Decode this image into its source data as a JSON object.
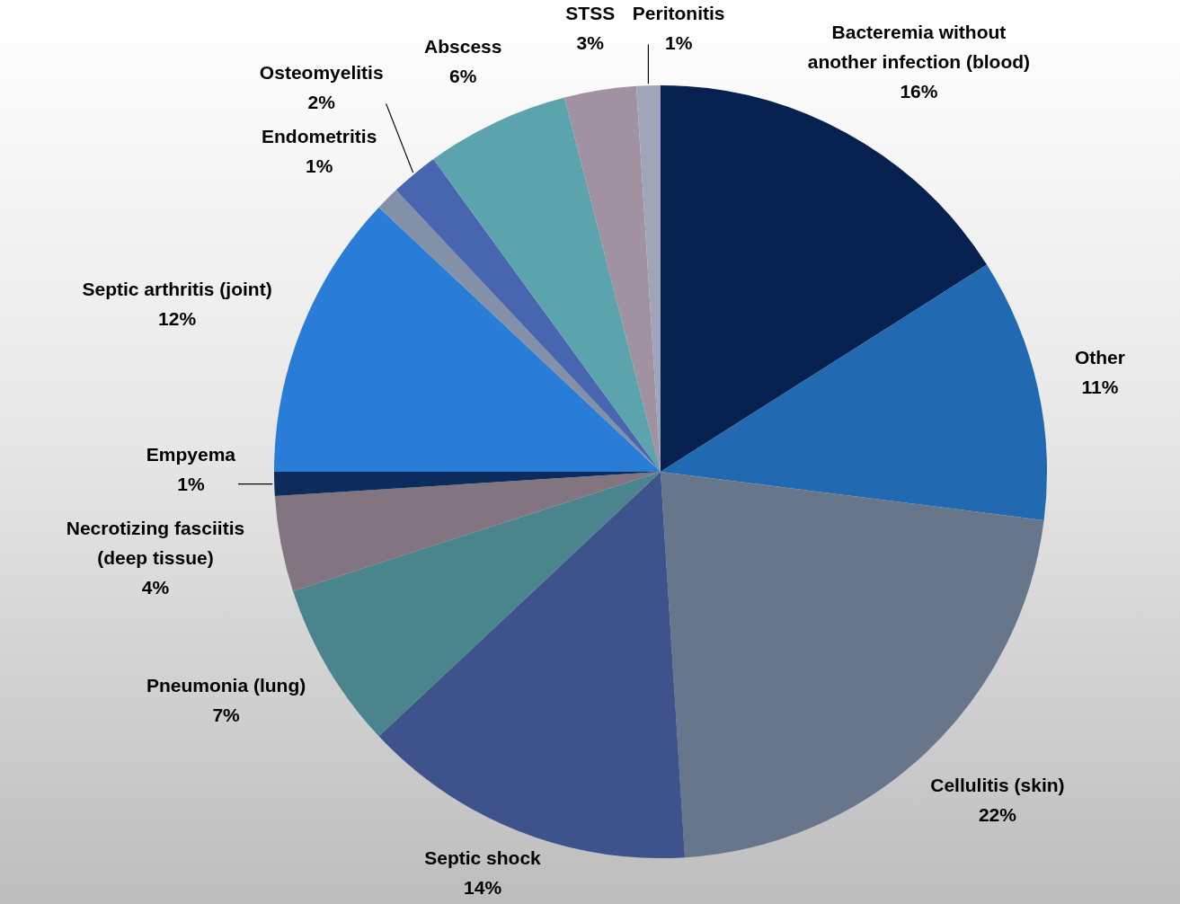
{
  "chart_data": {
    "type": "pie",
    "categories": [
      "Bacteremia without another infection (blood)",
      "Other",
      "Cellulitis (skin)",
      "Septic shock",
      "Pneumonia (lung)",
      "Necrotizing fasciitis (deep tissue)",
      "Empyema",
      "Septic arthritis (joint)",
      "Endometritis",
      "Osteomyelitis",
      "Abscess",
      "STSS",
      "Peritonitis"
    ],
    "values": [
      16,
      11,
      22,
      14,
      7,
      4,
      1,
      12,
      1,
      2,
      6,
      3,
      1
    ],
    "value_labels": [
      "16%",
      "11%",
      "22%",
      "14%",
      "7%",
      "4%",
      "1%",
      "12%",
      "1%",
      "2%",
      "6%",
      "3%",
      "1%"
    ],
    "colors": [
      "#06214f",
      "#2169b0",
      "#68768c",
      "#3e538b",
      "#4a848c",
      "#83757f",
      "#0c2c5e",
      "#297dd6",
      "#8391a8",
      "#4866b0",
      "#5ba3ad",
      "#a092a0",
      "#a0a6b8"
    ]
  }
}
